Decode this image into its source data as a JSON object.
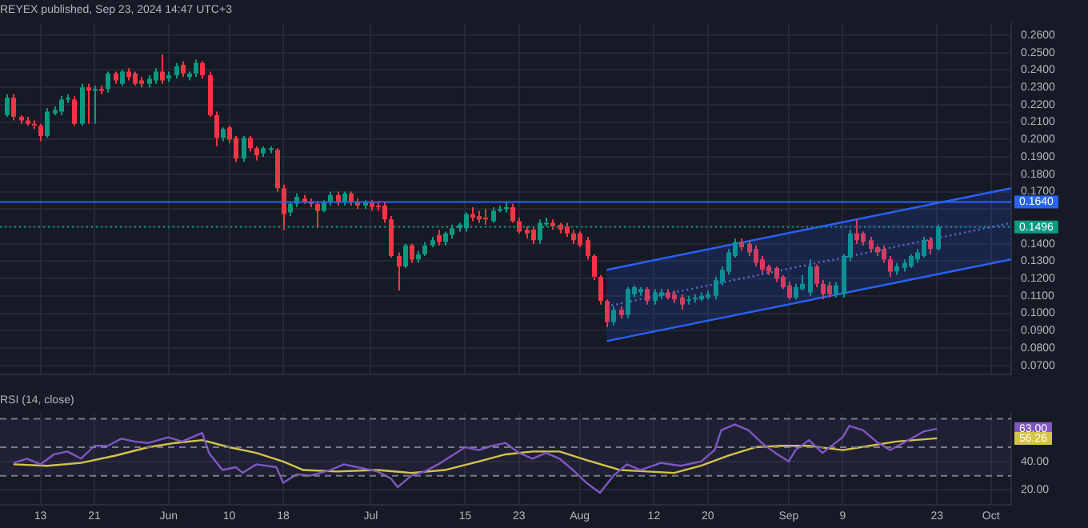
{
  "chart_data": [
    {
      "type": "candlestick",
      "title": "REYEX published, Sep 23, 2024 14:47 UTC+3",
      "x": [
        "2024-05-08",
        "2024-05-09",
        "2024-05-10",
        "2024-05-11",
        "2024-05-12",
        "2024-05-13",
        "2024-05-14",
        "2024-05-15",
        "2024-05-16",
        "2024-05-17",
        "2024-05-18",
        "2024-05-19",
        "2024-05-20",
        "2024-05-21",
        "2024-05-22",
        "2024-05-23",
        "2024-05-24",
        "2024-05-25",
        "2024-05-26",
        "2024-05-27",
        "2024-05-28",
        "2024-05-29",
        "2024-05-30",
        "2024-05-31",
        "2024-06-01",
        "2024-06-02",
        "2024-06-03",
        "2024-06-04",
        "2024-06-05",
        "2024-06-06",
        "2024-06-07",
        "2024-06-08",
        "2024-06-09",
        "2024-06-10",
        "2024-06-11",
        "2024-06-12",
        "2024-06-13",
        "2024-06-14",
        "2024-06-15",
        "2024-06-16",
        "2024-06-17",
        "2024-06-18",
        "2024-06-19",
        "2024-06-20",
        "2024-06-21",
        "2024-06-22",
        "2024-06-23",
        "2024-06-24",
        "2024-06-25",
        "2024-06-26",
        "2024-06-27",
        "2024-06-28",
        "2024-06-29",
        "2024-06-30",
        "2024-07-01",
        "2024-07-02",
        "2024-07-03",
        "2024-07-04",
        "2024-07-05",
        "2024-07-06",
        "2024-07-07",
        "2024-07-08",
        "2024-07-09",
        "2024-07-10",
        "2024-07-11",
        "2024-07-12",
        "2024-07-13",
        "2024-07-14",
        "2024-07-15",
        "2024-07-16",
        "2024-07-17",
        "2024-07-18",
        "2024-07-19",
        "2024-07-20",
        "2024-07-21",
        "2024-07-22",
        "2024-07-23",
        "2024-07-24",
        "2024-07-25",
        "2024-07-26",
        "2024-07-27",
        "2024-07-28",
        "2024-07-29",
        "2024-07-30",
        "2024-07-31",
        "2024-08-01",
        "2024-08-02",
        "2024-08-03",
        "2024-08-04",
        "2024-08-05",
        "2024-08-06",
        "2024-08-07",
        "2024-08-08",
        "2024-08-09",
        "2024-08-10",
        "2024-08-11",
        "2024-08-12",
        "2024-08-13",
        "2024-08-14",
        "2024-08-15",
        "2024-08-16",
        "2024-08-17",
        "2024-08-18",
        "2024-08-19",
        "2024-08-20",
        "2024-08-21",
        "2024-08-22",
        "2024-08-23",
        "2024-08-24",
        "2024-08-25",
        "2024-08-26",
        "2024-08-27",
        "2024-08-28",
        "2024-08-29",
        "2024-08-30",
        "2024-08-31",
        "2024-09-01",
        "2024-09-02",
        "2024-09-03",
        "2024-09-04",
        "2024-09-05",
        "2024-09-06",
        "2024-09-07",
        "2024-09-08",
        "2024-09-09",
        "2024-09-10",
        "2024-09-11",
        "2024-09-12",
        "2024-09-13",
        "2024-09-14",
        "2024-09-15",
        "2024-09-16",
        "2024-09-17",
        "2024-09-18",
        "2024-09-19",
        "2024-09-20",
        "2024-09-21",
        "2024-09-22",
        "2024-09-23"
      ],
      "ohlc": [
        [
          0.214,
          0.226,
          0.213,
          0.224
        ],
        [
          0.224,
          0.226,
          0.211,
          0.213
        ],
        [
          0.213,
          0.214,
          0.209,
          0.211
        ],
        [
          0.211,
          0.213,
          0.208,
          0.209
        ],
        [
          0.209,
          0.211,
          0.206,
          0.208
        ],
        [
          0.208,
          0.209,
          0.199,
          0.202
        ],
        [
          0.202,
          0.218,
          0.201,
          0.216
        ],
        [
          0.215,
          0.219,
          0.214,
          0.217
        ],
        [
          0.216,
          0.225,
          0.214,
          0.223
        ],
        [
          0.223,
          0.226,
          0.221,
          0.224
        ],
        [
          0.223,
          0.225,
          0.208,
          0.209
        ],
        [
          0.209,
          0.232,
          0.208,
          0.23
        ],
        [
          0.23,
          0.232,
          0.209,
          0.228
        ],
        [
          0.228,
          0.231,
          0.209,
          0.229
        ],
        [
          0.229,
          0.231,
          0.226,
          0.228
        ],
        [
          0.229,
          0.239,
          0.227,
          0.238
        ],
        [
          0.238,
          0.239,
          0.232,
          0.234
        ],
        [
          0.232,
          0.24,
          0.231,
          0.239
        ],
        [
          0.239,
          0.241,
          0.234,
          0.236
        ],
        [
          0.238,
          0.239,
          0.231,
          0.232
        ],
        [
          0.234,
          0.236,
          0.23,
          0.232
        ],
        [
          0.232,
          0.237,
          0.23,
          0.235
        ],
        [
          0.234,
          0.241,
          0.232,
          0.239
        ],
        [
          0.239,
          0.249,
          0.232,
          0.234
        ],
        [
          0.235,
          0.239,
          0.233,
          0.237
        ],
        [
          0.237,
          0.244,
          0.235,
          0.242
        ],
        [
          0.243,
          0.245,
          0.236,
          0.238
        ],
        [
          0.236,
          0.239,
          0.234,
          0.238
        ],
        [
          0.238,
          0.246,
          0.236,
          0.244
        ],
        [
          0.244,
          0.245,
          0.235,
          0.237
        ],
        [
          0.237,
          0.239,
          0.213,
          0.214
        ],
        [
          0.214,
          0.216,
          0.196,
          0.201
        ],
        [
          0.201,
          0.207,
          0.199,
          0.206
        ],
        [
          0.207,
          0.208,
          0.198,
          0.2
        ],
        [
          0.201,
          0.202,
          0.187,
          0.189
        ],
        [
          0.189,
          0.202,
          0.187,
          0.201
        ],
        [
          0.201,
          0.202,
          0.193,
          0.195
        ],
        [
          0.195,
          0.196,
          0.188,
          0.191
        ],
        [
          0.192,
          0.196,
          0.19,
          0.195
        ],
        [
          0.194,
          0.196,
          0.192,
          0.195
        ],
        [
          0.194,
          0.195,
          0.17,
          0.172
        ],
        [
          0.172,
          0.174,
          0.148,
          0.157
        ],
        [
          0.158,
          0.164,
          0.156,
          0.163
        ],
        [
          0.163,
          0.169,
          0.161,
          0.167
        ],
        [
          0.166,
          0.168,
          0.163,
          0.164
        ],
        [
          0.164,
          0.166,
          0.161,
          0.163
        ],
        [
          0.163,
          0.164,
          0.149,
          0.159
        ],
        [
          0.159,
          0.165,
          0.158,
          0.164
        ],
        [
          0.164,
          0.17,
          0.162,
          0.168
        ],
        [
          0.168,
          0.17,
          0.162,
          0.164
        ],
        [
          0.164,
          0.17,
          0.162,
          0.169
        ],
        [
          0.169,
          0.17,
          0.162,
          0.164
        ],
        [
          0.164,
          0.166,
          0.16,
          0.162
        ],
        [
          0.162,
          0.165,
          0.16,
          0.164
        ],
        [
          0.164,
          0.165,
          0.159,
          0.161
        ],
        [
          0.162,
          0.164,
          0.159,
          0.161
        ],
        [
          0.162,
          0.164,
          0.152,
          0.154
        ],
        [
          0.154,
          0.156,
          0.132,
          0.133
        ],
        [
          0.133,
          0.135,
          0.113,
          0.127
        ],
        [
          0.127,
          0.14,
          0.126,
          0.139
        ],
        [
          0.139,
          0.14,
          0.129,
          0.131
        ],
        [
          0.131,
          0.136,
          0.129,
          0.134
        ],
        [
          0.134,
          0.141,
          0.133,
          0.139
        ],
        [
          0.139,
          0.144,
          0.138,
          0.142
        ],
        [
          0.145,
          0.148,
          0.139,
          0.141
        ],
        [
          0.141,
          0.147,
          0.139,
          0.146
        ],
        [
          0.145,
          0.151,
          0.143,
          0.149
        ],
        [
          0.149,
          0.152,
          0.147,
          0.151
        ],
        [
          0.149,
          0.158,
          0.147,
          0.157
        ],
        [
          0.157,
          0.161,
          0.153,
          0.155
        ],
        [
          0.156,
          0.159,
          0.152,
          0.154
        ],
        [
          0.155,
          0.16,
          0.151,
          0.154
        ],
        [
          0.153,
          0.161,
          0.152,
          0.159
        ],
        [
          0.159,
          0.162,
          0.158,
          0.16
        ],
        [
          0.16,
          0.164,
          0.158,
          0.161
        ],
        [
          0.161,
          0.163,
          0.152,
          0.153
        ],
        [
          0.153,
          0.155,
          0.146,
          0.147
        ],
        [
          0.148,
          0.15,
          0.143,
          0.146
        ],
        [
          0.148,
          0.15,
          0.14,
          0.142
        ],
        [
          0.142,
          0.154,
          0.14,
          0.152
        ],
        [
          0.152,
          0.155,
          0.15,
          0.152
        ],
        [
          0.152,
          0.154,
          0.148,
          0.15
        ],
        [
          0.151,
          0.152,
          0.146,
          0.148
        ],
        [
          0.15,
          0.152,
          0.144,
          0.146
        ],
        [
          0.146,
          0.148,
          0.14,
          0.142
        ],
        [
          0.146,
          0.147,
          0.138,
          0.139
        ],
        [
          0.142,
          0.144,
          0.131,
          0.133
        ],
        [
          0.133,
          0.134,
          0.119,
          0.121
        ],
        [
          0.121,
          0.122,
          0.105,
          0.107
        ],
        [
          0.107,
          0.108,
          0.092,
          0.095
        ],
        [
          0.095,
          0.104,
          0.093,
          0.102
        ],
        [
          0.102,
          0.104,
          0.097,
          0.099
        ],
        [
          0.099,
          0.115,
          0.097,
          0.114
        ],
        [
          0.111,
          0.116,
          0.109,
          0.115
        ],
        [
          0.112,
          0.115,
          0.11,
          0.114
        ],
        [
          0.114,
          0.115,
          0.105,
          0.107
        ],
        [
          0.107,
          0.114,
          0.105,
          0.112
        ],
        [
          0.11,
          0.114,
          0.108,
          0.112
        ],
        [
          0.112,
          0.114,
          0.108,
          0.109
        ],
        [
          0.111,
          0.113,
          0.106,
          0.108
        ],
        [
          0.109,
          0.111,
          0.102,
          0.105
        ],
        [
          0.107,
          0.11,
          0.105,
          0.108
        ],
        [
          0.108,
          0.111,
          0.106,
          0.109
        ],
        [
          0.108,
          0.112,
          0.107,
          0.11
        ],
        [
          0.109,
          0.113,
          0.108,
          0.111
        ],
        [
          0.11,
          0.121,
          0.108,
          0.119
        ],
        [
          0.118,
          0.127,
          0.116,
          0.125
        ],
        [
          0.124,
          0.137,
          0.122,
          0.135
        ],
        [
          0.133,
          0.143,
          0.132,
          0.141
        ],
        [
          0.141,
          0.143,
          0.136,
          0.138
        ],
        [
          0.14,
          0.142,
          0.133,
          0.135
        ],
        [
          0.137,
          0.139,
          0.127,
          0.129
        ],
        [
          0.131,
          0.133,
          0.123,
          0.125
        ],
        [
          0.127,
          0.128,
          0.122,
          0.124
        ],
        [
          0.126,
          0.127,
          0.118,
          0.12
        ],
        [
          0.121,
          0.122,
          0.114,
          0.115
        ],
        [
          0.116,
          0.118,
          0.108,
          0.109
        ],
        [
          0.109,
          0.117,
          0.108,
          0.115
        ],
        [
          0.114,
          0.122,
          0.113,
          0.117
        ],
        [
          0.112,
          0.131,
          0.11,
          0.127
        ],
        [
          0.127,
          0.128,
          0.115,
          0.117
        ],
        [
          0.117,
          0.119,
          0.108,
          0.111
        ],
        [
          0.116,
          0.118,
          0.109,
          0.111
        ],
        [
          0.111,
          0.118,
          0.109,
          0.116
        ],
        [
          0.111,
          0.134,
          0.109,
          0.133
        ],
        [
          0.132,
          0.148,
          0.13,
          0.146
        ],
        [
          0.146,
          0.154,
          0.14,
          0.142
        ],
        [
          0.146,
          0.147,
          0.139,
          0.141
        ],
        [
          0.142,
          0.144,
          0.135,
          0.137
        ],
        [
          0.138,
          0.139,
          0.133,
          0.135
        ],
        [
          0.137,
          0.139,
          0.129,
          0.131
        ],
        [
          0.131,
          0.133,
          0.121,
          0.124
        ],
        [
          0.124,
          0.129,
          0.122,
          0.127
        ],
        [
          0.126,
          0.131,
          0.124,
          0.129
        ],
        [
          0.127,
          0.134,
          0.126,
          0.133
        ],
        [
          0.131,
          0.137,
          0.129,
          0.135
        ],
        [
          0.133,
          0.144,
          0.132,
          0.142
        ],
        [
          0.142,
          0.144,
          0.134,
          0.137
        ],
        [
          0.137,
          0.151,
          0.136,
          0.1496
        ]
      ],
      "series": [
        {
          "type": "line",
          "color": "#2962ff",
          "x": [
            "2024-08-05",
            "2024-10-04"
          ],
          "values": [
            0.125,
            0.172
          ]
        },
        {
          "type": "line",
          "color": "#5b74c9",
          "line_style": "dotted",
          "x": [
            "2024-08-05",
            "2024-10-04"
          ],
          "values": [
            0.104,
            0.152
          ]
        },
        {
          "type": "line",
          "color": "#2962ff",
          "x": [
            "2024-08-05",
            "2024-10-04"
          ],
          "values": [
            0.084,
            0.131
          ]
        }
      ],
      "ylim": [
        0.065,
        0.267
      ],
      "yticks": [
        {
          "value": 0.07,
          "label": "0.0700"
        },
        {
          "value": 0.08,
          "label": "0.0800"
        },
        {
          "value": 0.09,
          "label": "0.0900"
        },
        {
          "value": 0.1,
          "label": "0.1000"
        },
        {
          "value": 0.11,
          "label": "0.1100"
        },
        {
          "value": 0.12,
          "label": "0.1200"
        },
        {
          "value": 0.13,
          "label": "0.1300"
        },
        {
          "value": 0.14,
          "label": "0.1400"
        },
        {
          "value": 0.15,
          "label": null
        },
        {
          "value": 0.16,
          "label": null
        },
        {
          "value": 0.17,
          "label": "0.1700"
        },
        {
          "value": 0.18,
          "label": "0.1800"
        },
        {
          "value": 0.19,
          "label": "0.1900"
        },
        {
          "value": 0.2,
          "label": "0.2000"
        },
        {
          "value": 0.21,
          "label": "0.2100"
        },
        {
          "value": 0.22,
          "label": "0.2200"
        },
        {
          "value": 0.23,
          "label": "0.2300"
        },
        {
          "value": 0.24,
          "label": "0.2400"
        },
        {
          "value": 0.25,
          "label": "0.2500"
        },
        {
          "value": 0.26,
          "label": "0.2600"
        }
      ],
      "xlim": [
        "2024-05-07",
        "2024-10-04"
      ],
      "xticks": [
        {
          "value": "2024-05-13",
          "label": null
        },
        {
          "value": "2024-05-21",
          "label": null
        },
        {
          "value": "2024-06-01",
          "label": null
        },
        {
          "value": "2024-06-10",
          "label": null
        },
        {
          "value": "2024-06-18",
          "label": null
        },
        {
          "value": "2024-07-01",
          "label": null
        },
        {
          "value": "2024-07-15",
          "label": null
        },
        {
          "value": "2024-07-23",
          "label": null
        },
        {
          "value": "2024-08-01",
          "label": null
        },
        {
          "value": "2024-08-12",
          "label": null
        },
        {
          "value": "2024-08-20",
          "label": null
        },
        {
          "value": "2024-09-01",
          "label": null
        },
        {
          "value": "2024-09-09",
          "label": null
        },
        {
          "value": "2024-09-23",
          "label": null
        },
        {
          "value": "2024-10-01",
          "label": null
        }
      ],
      "tick_labels": "y",
      "grid": true,
      "ref_lines": [
        {
          "axis": "y",
          "value": 0.164,
          "label": "0.1640",
          "color": "#2962ff"
        },
        {
          "axis": "y",
          "value": 0.1496,
          "label": "0.1496",
          "color": "#089981",
          "line_style": "dotted"
        }
      ]
    },
    {
      "type": "line",
      "title": "RSI (14, close)",
      "series": [
        {
          "color": "#7e57c2",
          "x": [
            "2024-05-09",
            "2024-05-11",
            "2024-05-13",
            "2024-05-15",
            "2024-05-17",
            "2024-05-19",
            "2024-05-21",
            "2024-05-23",
            "2024-05-25",
            "2024-05-27",
            "2024-05-29",
            "2024-06-01",
            "2024-06-03",
            "2024-06-06",
            "2024-06-07",
            "2024-06-09",
            "2024-06-11",
            "2024-06-12",
            "2024-06-14",
            "2024-06-17",
            "2024-06-18",
            "2024-06-20",
            "2024-06-22",
            "2024-06-25",
            "2024-06-27",
            "2024-06-29",
            "2024-07-02",
            "2024-07-04",
            "2024-07-05",
            "2024-07-07",
            "2024-07-09",
            "2024-07-11",
            "2024-07-13",
            "2024-07-15",
            "2024-07-17",
            "2024-07-19",
            "2024-07-21",
            "2024-07-23",
            "2024-07-25",
            "2024-07-27",
            "2024-07-29",
            "2024-07-31",
            "2024-08-02",
            "2024-08-04",
            "2024-08-06",
            "2024-08-08",
            "2024-08-10",
            "2024-08-13",
            "2024-08-16",
            "2024-08-19",
            "2024-08-21",
            "2024-08-22",
            "2024-08-24",
            "2024-08-26",
            "2024-08-28",
            "2024-08-30",
            "2024-09-01",
            "2024-09-02",
            "2024-09-04",
            "2024-09-06",
            "2024-09-09",
            "2024-09-10",
            "2024-09-12",
            "2024-09-14",
            "2024-09-16",
            "2024-09-18",
            "2024-09-21",
            "2024-09-23"
          ],
          "values": [
            39,
            42,
            38,
            45,
            47,
            42,
            51,
            51,
            56,
            54,
            53,
            57,
            54,
            60,
            46,
            34,
            36,
            32,
            38,
            36,
            25,
            31,
            30,
            34,
            38,
            36,
            33,
            28,
            22,
            30,
            33,
            38,
            44,
            50,
            48,
            51,
            53,
            46,
            42,
            46,
            42,
            34,
            25,
            18,
            30,
            38,
            34,
            39,
            37,
            40,
            48,
            62,
            66,
            62,
            53,
            46,
            40,
            48,
            55,
            46,
            57,
            65,
            62,
            54,
            48,
            53,
            61,
            63
          ]
        },
        {
          "color": "#d4c34a",
          "x": [
            "2024-05-09",
            "2024-05-14",
            "2024-05-19",
            "2024-05-24",
            "2024-05-29",
            "2024-06-02",
            "2024-06-06",
            "2024-06-10",
            "2024-06-14",
            "2024-06-18",
            "2024-06-21",
            "2024-06-26",
            "2024-07-02",
            "2024-07-07",
            "2024-07-12",
            "2024-07-17",
            "2024-07-21",
            "2024-07-25",
            "2024-07-29",
            "2024-08-02",
            "2024-08-07",
            "2024-08-11",
            "2024-08-15",
            "2024-08-19",
            "2024-08-23",
            "2024-08-27",
            "2024-08-31",
            "2024-09-04",
            "2024-09-09",
            "2024-09-13",
            "2024-09-17",
            "2024-09-23"
          ],
          "values": [
            38,
            37,
            39,
            44,
            50,
            53,
            55,
            50,
            46,
            40,
            34,
            33,
            34,
            32,
            34,
            40,
            45,
            47,
            47,
            41,
            34,
            33,
            32,
            37,
            44,
            50,
            51,
            51,
            48,
            51,
            54,
            56.26
          ]
        }
      ],
      "ylim": [
        9.5,
        73.7
      ],
      "yticks": [
        {
          "value": 40,
          "label": "40.00"
        },
        {
          "value": 20,
          "label": "20.00"
        }
      ],
      "xlim": [
        "2024-05-07",
        "2024-10-04"
      ],
      "xticks": [
        {
          "value": "2024-05-13",
          "label": "13"
        },
        {
          "value": "2024-05-21",
          "label": "21"
        },
        {
          "value": "2024-06-01",
          "label": "Jun"
        },
        {
          "value": "2024-06-10",
          "label": "10"
        },
        {
          "value": "2024-06-18",
          "label": "18"
        },
        {
          "value": "2024-07-01",
          "label": "Jul"
        },
        {
          "value": "2024-07-15",
          "label": "15"
        },
        {
          "value": "2024-07-23",
          "label": "23"
        },
        {
          "value": "2024-08-01",
          "label": "Aug"
        },
        {
          "value": "2024-08-12",
          "label": "12"
        },
        {
          "value": "2024-08-20",
          "label": "20"
        },
        {
          "value": "2024-09-01",
          "label": "Sep"
        },
        {
          "value": "2024-09-09",
          "label": "9"
        },
        {
          "value": "2024-09-23",
          "label": "23"
        },
        {
          "value": "2024-10-01",
          "label": "Oct"
        }
      ],
      "grid": true,
      "bands": [
        {
          "axis": "y",
          "from": 30,
          "to": 70,
          "color": "#7e57c2"
        }
      ],
      "ref_lines": [
        {
          "axis": "y",
          "value": 70,
          "color": "#787b86",
          "line_style": "dashed"
        },
        {
          "axis": "y",
          "value": 50,
          "color": "#787b86",
          "line_style": "dashed"
        },
        {
          "axis": "y",
          "value": 30,
          "color": "#787b86",
          "line_style": "dashed"
        }
      ],
      "annotations": [
        "63.00",
        "56.26"
      ]
    }
  ]
}
